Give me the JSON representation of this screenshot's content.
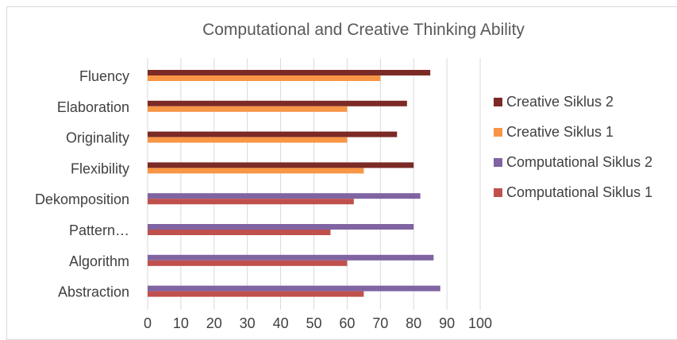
{
  "chart_data": {
    "type": "bar",
    "orientation": "horizontal",
    "title": "Computational and Creative Thinking Ability",
    "categories": [
      "Fluency",
      "Elaboration",
      "Originality",
      "Flexibility",
      "Dekomposition",
      "Pattern…",
      "Algorithm",
      "Abstraction"
    ],
    "series": [
      {
        "name": "Creative Siklus 2",
        "color": "#7b2a26",
        "values": [
          85,
          78,
          75,
          80,
          null,
          null,
          null,
          null
        ]
      },
      {
        "name": "Creative Siklus  1",
        "color": "#f79646",
        "values": [
          70,
          60,
          60,
          65,
          null,
          null,
          null,
          null
        ]
      },
      {
        "name": "Computational Siklus 2",
        "color": "#8064a2",
        "values": [
          null,
          null,
          null,
          null,
          82,
          80,
          86,
          88
        ]
      },
      {
        "name": "Computational Siklus 1",
        "color": "#c0504d",
        "values": [
          null,
          null,
          null,
          null,
          62,
          55,
          60,
          65
        ]
      }
    ],
    "xlim": [
      0,
      100
    ],
    "xticks": [
      "0",
      "10",
      "20",
      "30",
      "40",
      "50",
      "60",
      "70",
      "80",
      "90",
      "100"
    ],
    "grid": true,
    "legend_position": "right",
    "xlabel": "",
    "ylabel": ""
  }
}
